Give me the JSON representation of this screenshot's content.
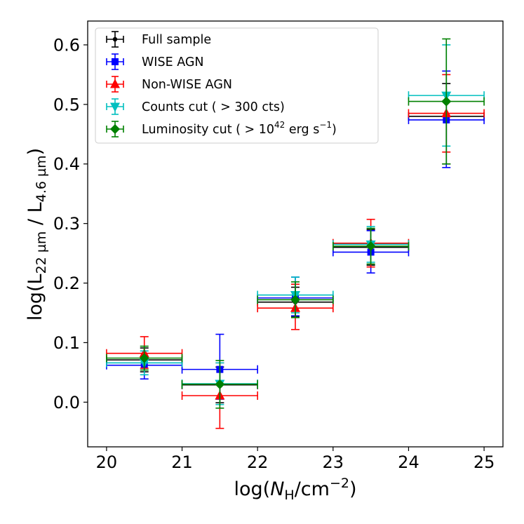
{
  "chart_data": {
    "type": "scatter",
    "title": "",
    "xlabel": "log(N_H/cm^-2)",
    "ylabel": "log(L_22µm / L_4.6µm)",
    "xlim": [
      19.75,
      25.25
    ],
    "ylim": [
      -0.075,
      0.64
    ],
    "xticks": [
      20,
      21,
      22,
      23,
      24,
      25
    ],
    "yticks": [
      0.0,
      0.1,
      0.2,
      0.3,
      0.4,
      0.5,
      0.6
    ],
    "xtick_labels": [
      "20",
      "21",
      "22",
      "23",
      "24",
      "25"
    ],
    "ytick_labels": [
      "0.0",
      "0.1",
      "0.2",
      "0.3",
      "0.4",
      "0.5",
      "0.6"
    ],
    "xlabel_parts": {
      "pre": "log(",
      "var": "N",
      "sub": "H",
      "mid": "/cm",
      "sup": "−2",
      "post": ")"
    },
    "ylabel_parts": {
      "pre": "log(L",
      "sub1": "22 µm",
      "mid": " / L",
      "sub2": "4.6 µm",
      "post": ")"
    },
    "legend_position": "top-left",
    "x_bin_halfwidth": 0.5,
    "series": [
      {
        "name": "Full sample",
        "label_parts": {
          "main": "Full sample"
        },
        "color": "#000000",
        "marker": "circle-small",
        "x": [
          20.5,
          21.5,
          22.5,
          23.5,
          24.5
        ],
        "y": [
          0.071,
          0.029,
          0.168,
          0.26,
          0.48
        ],
        "yerr_low": [
          0.02,
          0.03,
          0.025,
          0.03,
          0.08
        ],
        "yerr_high": [
          0.02,
          0.03,
          0.025,
          0.03,
          0.055
        ]
      },
      {
        "name": "WISE AGN",
        "label_parts": {
          "main": "WISE AGN"
        },
        "color": "#0000ff",
        "marker": "square",
        "x": [
          20.5,
          21.5,
          22.5,
          23.5,
          24.5
        ],
        "y": [
          0.062,
          0.055,
          0.175,
          0.252,
          0.474
        ],
        "yerr_low": [
          0.023,
          0.05,
          0.03,
          0.035,
          0.08
        ],
        "yerr_high": [
          0.02,
          0.059,
          0.035,
          0.036,
          0.082
        ]
      },
      {
        "name": "Non-WISE AGN",
        "label_parts": {
          "main": "Non-WISE AGN"
        },
        "color": "#ff0000",
        "marker": "triangle-up",
        "x": [
          20.5,
          21.5,
          22.5,
          23.5,
          24.5
        ],
        "y": [
          0.082,
          0.011,
          0.158,
          0.267,
          0.485
        ],
        "yerr_low": [
          0.025,
          0.055,
          0.036,
          0.04,
          0.065
        ],
        "yerr_high": [
          0.028,
          0.055,
          0.04,
          0.04,
          0.065
        ]
      },
      {
        "name": "Counts cut (> 300 cts)",
        "label_parts": {
          "main": "Counts cut ( > 300 cts)"
        },
        "color": "#00bfbf",
        "marker": "triangle-down",
        "x": [
          20.5,
          21.5,
          22.5,
          23.5,
          24.5
        ],
        "y": [
          0.066,
          0.031,
          0.18,
          0.265,
          0.515
        ],
        "yerr_low": [
          0.02,
          0.035,
          0.03,
          0.03,
          0.085
        ],
        "yerr_high": [
          0.02,
          0.035,
          0.03,
          0.03,
          0.085
        ]
      },
      {
        "name": "Luminosity cut (> 10^42 erg s^-1)",
        "label_parts": {
          "main": "Luminosity cut ( > 10",
          "sup1": "42",
          "mid": " erg s",
          "sup2": "−1",
          "post": ")"
        },
        "color": "#008000",
        "marker": "diamond",
        "x": [
          20.5,
          21.5,
          22.5,
          23.5,
          24.5
        ],
        "y": [
          0.074,
          0.03,
          0.172,
          0.262,
          0.505
        ],
        "yerr_low": [
          0.02,
          0.04,
          0.03,
          0.03,
          0.105
        ],
        "yerr_high": [
          0.02,
          0.04,
          0.03,
          0.03,
          0.105
        ]
      }
    ]
  }
}
